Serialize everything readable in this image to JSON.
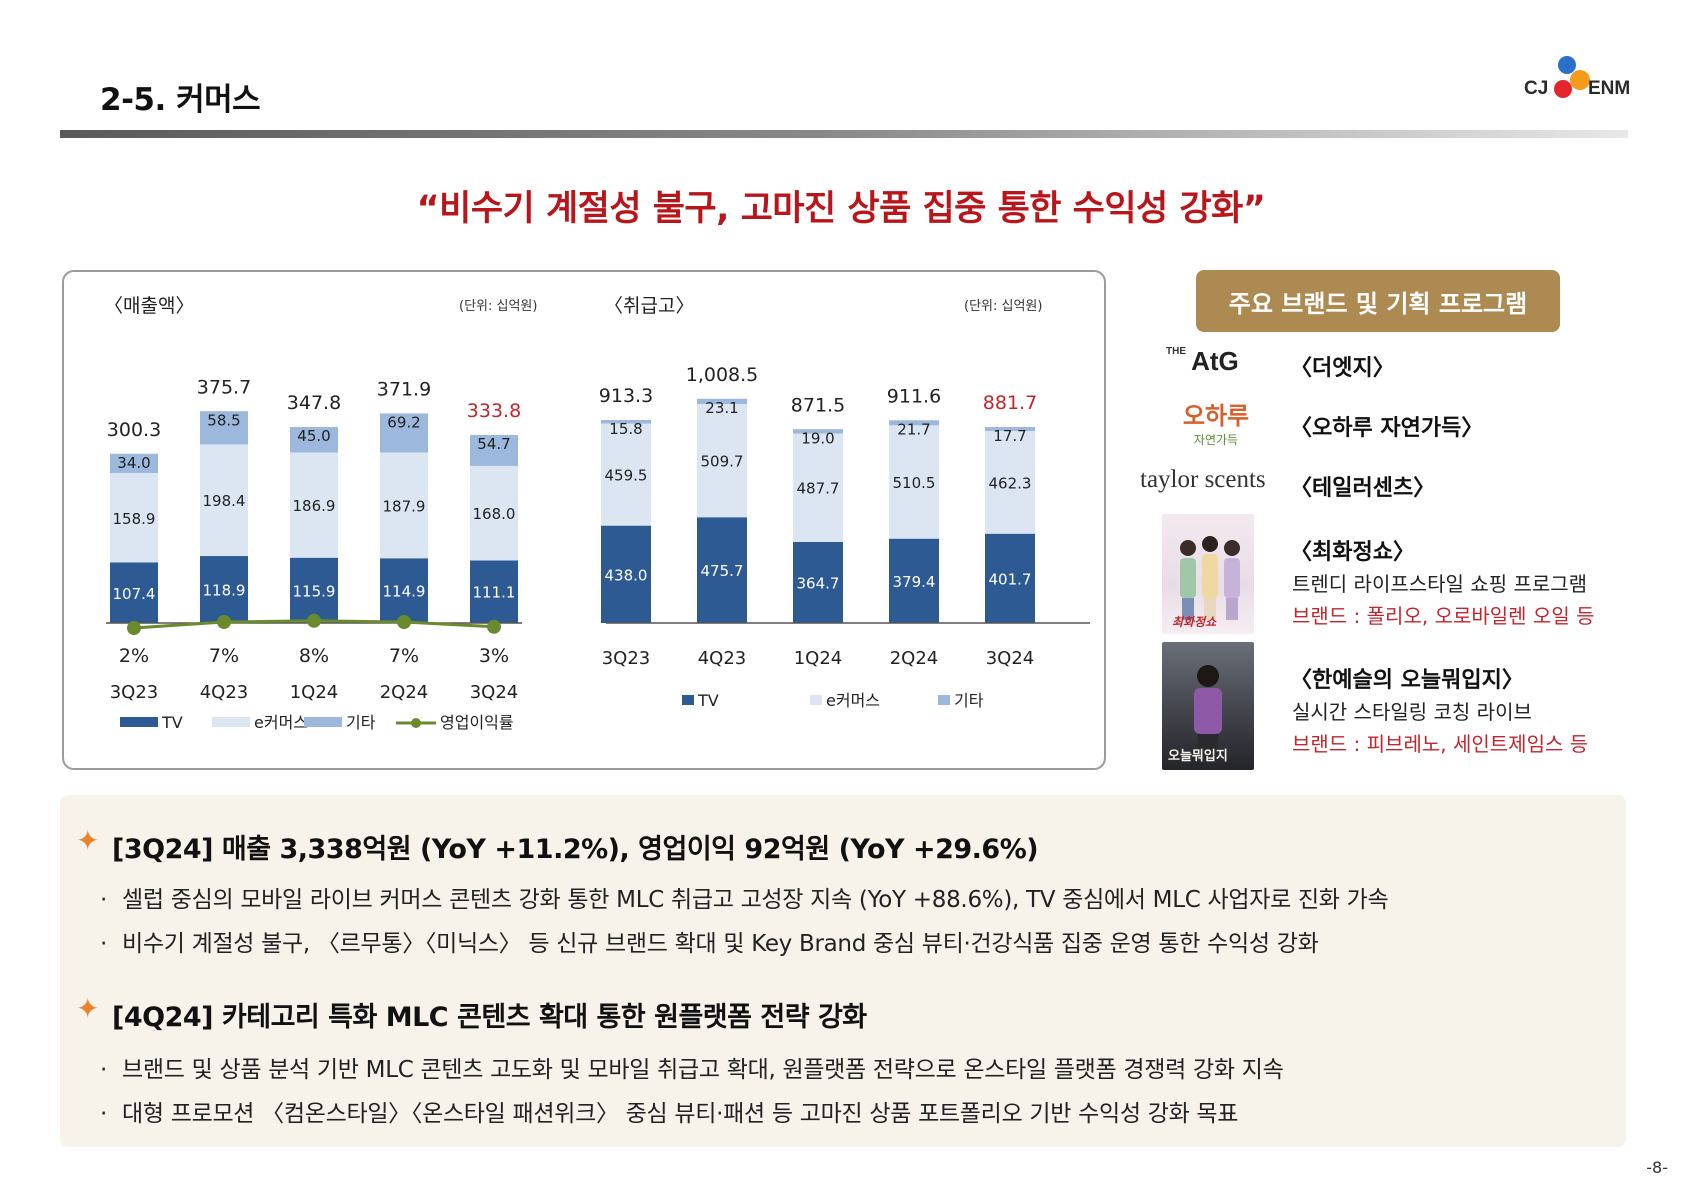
{
  "header": {
    "title": "2-5. 커머스",
    "logo_left": "CJ",
    "logo_right": "ENM"
  },
  "headline": "“비수기 계절성 불구, 고마진 상품 집중 통한 수익성 강화”",
  "colors": {
    "tv": "#2d5a92",
    "ecommerce": "#dce6f3",
    "other": "#9cb8dc",
    "margin_line": "#6a8a2e",
    "highlight": "#c0262d",
    "gold": "#ad8a52"
  },
  "chart_data": [
    {
      "type": "bar",
      "title": "〈매출액〉",
      "unit": "(단위: 십억원)",
      "stacked": true,
      "categories": [
        "3Q23",
        "4Q23",
        "1Q24",
        "2Q24",
        "3Q24"
      ],
      "series": [
        {
          "name": "TV",
          "values": [
            107.4,
            118.9,
            115.9,
            114.9,
            111.1
          ]
        },
        {
          "name": "e커머스",
          "values": [
            158.9,
            198.4,
            186.9,
            187.9,
            168.0
          ]
        },
        {
          "name": "기타",
          "values": [
            34.0,
            58.5,
            45.0,
            69.2,
            54.7
          ]
        }
      ],
      "totals": [
        "300.3",
        "375.7",
        "347.8",
        "371.9",
        "333.8"
      ],
      "line_series": {
        "name": "영업이익률",
        "values": [
          2,
          7,
          8,
          7,
          3
        ],
        "labels": [
          "2%",
          "7%",
          "8%",
          "7%",
          "3%"
        ]
      },
      "legend": [
        "TV",
        "e커머스",
        "기타",
        "영업이익률"
      ],
      "legend_position": "bottom"
    },
    {
      "type": "bar",
      "title": "〈취급고〉",
      "unit": "(단위: 십억원)",
      "stacked": true,
      "categories": [
        "3Q23",
        "4Q23",
        "1Q24",
        "2Q24",
        "3Q24"
      ],
      "series": [
        {
          "name": "TV",
          "values": [
            438.0,
            475.7,
            364.7,
            379.4,
            401.7
          ]
        },
        {
          "name": "e커머스",
          "values": [
            459.5,
            509.7,
            487.7,
            510.5,
            462.3
          ]
        },
        {
          "name": "기타",
          "values": [
            15.8,
            23.1,
            19.0,
            21.7,
            17.7
          ]
        }
      ],
      "totals": [
        "913.3",
        "1,008.5",
        "871.5",
        "911.6",
        "881.7"
      ],
      "legend": [
        "TV",
        "e커머스",
        "기타"
      ],
      "legend_position": "bottom"
    }
  ],
  "brands": {
    "badge": "주요 브랜드 및 기획 프로그램",
    "items": [
      {
        "logo": "AtG",
        "logo_prefix": "THE",
        "name": "〈더엣지〉"
      },
      {
        "logo": "오하루",
        "logo_sub": "자연가득",
        "name": "〈오하루 자연가득〉"
      },
      {
        "logo": "taylor scents",
        "name": "〈테일러센츠〉"
      },
      {
        "name": "〈최화정쇼〉",
        "desc": "트렌디 라이프스타일 쇼핑 프로그램",
        "sub": "브랜드 : 폴리오, 오로바일렌 오일 등",
        "thumb_caption": "최화정쇼"
      },
      {
        "name": "〈한예슬의 오늘뭐입지〉",
        "desc": "실시간 스타일링 코칭 라이브",
        "sub": "브랜드 : 피브레노, 세인트제임스 등",
        "thumb_caption": "오늘뭐입지"
      }
    ]
  },
  "notes": [
    {
      "head": "[3Q24] 매출 3,338억원 (YoY +11.2%), 영업이익 92억원 (YoY +29.6%)",
      "bullets": [
        "셀럽 중심의 모바일 라이브 커머스 콘텐츠 강화 통한 MLC 취급고 고성장 지속 (YoY +88.6%), TV 중심에서 MLC 사업자로 진화 가속",
        "비수기 계절성 불구, 〈르무통〉〈미닉스〉 등 신규 브랜드 확대 및 Key Brand 중심 뷰티·건강식품 집중 운영 통한 수익성 강화"
      ]
    },
    {
      "head": "[4Q24] 카테고리 특화 MLC 콘텐츠 확대 통한 원플랫폼 전략 강화",
      "bullets": [
        "브랜드 및 상품 분석 기반 MLC 콘텐츠 고도화 및 모바일 취급고 확대, 원플랫폼 전략으로 온스타일 플랫폼 경쟁력 강화 지속",
        "대형 프로모션 〈컴온스타일〉〈온스타일 패션위크〉 중심 뷰티·패션 등 고마진 상품 포트폴리오 기반 수익성 강화 목표"
      ]
    }
  ],
  "page_number": "-8-"
}
